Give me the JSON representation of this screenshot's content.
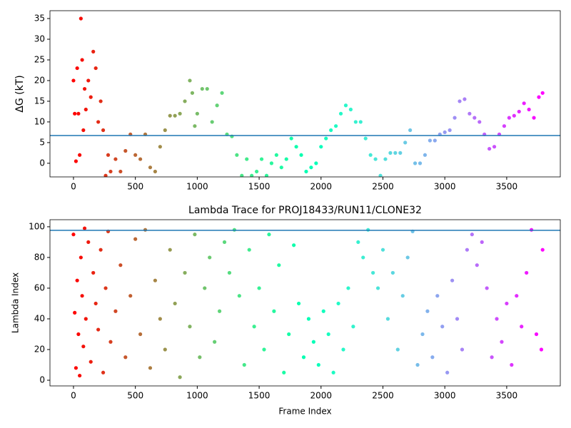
{
  "chart_data": [
    {
      "type": "scatter",
      "ylabel": "ΔG (kT)",
      "colormap": "rainbow_r",
      "hline": 6.7,
      "hline_color": "#1f77b4",
      "xlim": [
        -190,
        3933
      ],
      "ylim": [
        -3.3,
        36.9
      ],
      "xticks": [
        0,
        500,
        1000,
        1500,
        2000,
        2500,
        3000,
        3500
      ],
      "yticks": [
        0,
        5,
        10,
        15,
        20,
        25,
        30,
        35
      ],
      "x": [
        0,
        10,
        20,
        30,
        40,
        50,
        60,
        70,
        80,
        90,
        100,
        120,
        140,
        160,
        180,
        200,
        220,
        240,
        260,
        280,
        300,
        340,
        380,
        420,
        460,
        500,
        540,
        580,
        620,
        660,
        700,
        740,
        780,
        820,
        860,
        900,
        940,
        960,
        980,
        1000,
        1040,
        1080,
        1120,
        1160,
        1200,
        1240,
        1280,
        1320,
        1360,
        1400,
        1440,
        1480,
        1520,
        1560,
        1600,
        1640,
        1680,
        1720,
        1760,
        1800,
        1840,
        1880,
        1920,
        1960,
        2000,
        2040,
        2080,
        2120,
        2160,
        2200,
        2240,
        2280,
        2320,
        2360,
        2400,
        2440,
        2480,
        2520,
        2560,
        2600,
        2640,
        2680,
        2720,
        2760,
        2800,
        2840,
        2880,
        2920,
        2960,
        3000,
        3040,
        3080,
        3120,
        3160,
        3200,
        3240,
        3280,
        3320,
        3360,
        3400,
        3440,
        3480,
        3520,
        3560,
        3600,
        3640,
        3680,
        3720,
        3760,
        3790
      ],
      "values": [
        20,
        12,
        0.5,
        23,
        12,
        2,
        35,
        25,
        8,
        18,
        13,
        20,
        16,
        27,
        23,
        10,
        15,
        8,
        -3,
        2,
        -2,
        1,
        -2,
        3,
        7,
        2,
        1,
        7,
        -1,
        -2,
        4,
        8,
        11.5,
        11.5,
        12,
        15,
        20,
        17,
        9,
        12,
        18,
        18,
        10,
        14,
        17,
        7,
        6.5,
        2,
        -3,
        1,
        -3,
        -2,
        1,
        -3,
        0,
        2,
        -1,
        1,
        6,
        4,
        2,
        -2,
        -1,
        0,
        4,
        6,
        8,
        9,
        12,
        14,
        13,
        10,
        10,
        6,
        2,
        1,
        -3,
        1,
        2.5,
        2.5,
        2.5,
        5,
        8,
        0,
        0,
        2,
        5.5,
        5.5,
        7,
        7.5,
        8,
        11,
        15,
        15.5,
        12,
        11,
        10,
        7,
        3.5,
        4,
        7,
        9,
        11,
        11.5,
        12.5,
        14.5,
        13,
        11,
        16,
        17
      ]
    },
    {
      "type": "scatter",
      "title": "Lambda Trace for PROJ18433/RUN11/CLONE32",
      "xlabel": "Frame Index",
      "ylabel": "Lambda Index",
      "colormap": "rainbow_r",
      "hline": 97.7,
      "hline_color": "#1f77b4",
      "xlim": [
        -190,
        3933
      ],
      "ylim": [
        -3.7,
        104.6
      ],
      "xticks": [
        0,
        500,
        1000,
        1500,
        2000,
        2500,
        3000,
        3500
      ],
      "yticks": [
        0,
        20,
        40,
        60,
        80,
        100
      ],
      "x": [
        0,
        10,
        20,
        30,
        40,
        50,
        60,
        70,
        80,
        90,
        100,
        120,
        140,
        160,
        180,
        200,
        220,
        240,
        260,
        280,
        300,
        340,
        380,
        420,
        460,
        500,
        540,
        580,
        620,
        660,
        700,
        740,
        780,
        820,
        860,
        900,
        940,
        980,
        1020,
        1060,
        1100,
        1140,
        1180,
        1220,
        1260,
        1300,
        1340,
        1380,
        1420,
        1460,
        1500,
        1540,
        1580,
        1620,
        1660,
        1700,
        1740,
        1780,
        1820,
        1860,
        1900,
        1940,
        1980,
        2020,
        2060,
        2100,
        2140,
        2180,
        2220,
        2260,
        2300,
        2340,
        2380,
        2420,
        2460,
        2500,
        2540,
        2580,
        2620,
        2660,
        2700,
        2740,
        2780,
        2820,
        2860,
        2900,
        2940,
        2980,
        3020,
        3060,
        3100,
        3140,
        3180,
        3220,
        3260,
        3300,
        3340,
        3380,
        3420,
        3460,
        3500,
        3540,
        3580,
        3620,
        3660,
        3700,
        3740,
        3780,
        3790
      ],
      "values": [
        95,
        44,
        8,
        65,
        30,
        3,
        80,
        55,
        22,
        99,
        40,
        90,
        12,
        70,
        50,
        33,
        85,
        5,
        60,
        97,
        25,
        45,
        75,
        15,
        55,
        92,
        30,
        98,
        8,
        65,
        40,
        20,
        85,
        50,
        2,
        70,
        35,
        95,
        15,
        60,
        80,
        25,
        45,
        90,
        70,
        98,
        55,
        10,
        85,
        35,
        60,
        20,
        95,
        45,
        75,
        5,
        30,
        88,
        50,
        15,
        40,
        25,
        10,
        45,
        30,
        5,
        50,
        20,
        60,
        35,
        90,
        80,
        98,
        70,
        60,
        85,
        40,
        70,
        20,
        55,
        80,
        97,
        10,
        30,
        45,
        15,
        55,
        35,
        5,
        65,
        40,
        20,
        85,
        95,
        75,
        90,
        60,
        15,
        40,
        25,
        50,
        10,
        55,
        35,
        70,
        98,
        30,
        20,
        85
      ]
    }
  ]
}
